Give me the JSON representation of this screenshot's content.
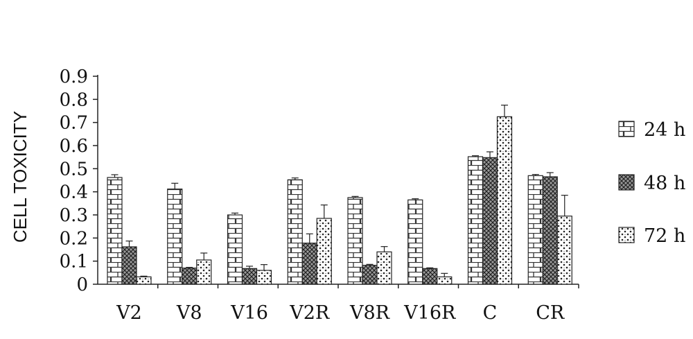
{
  "chart_data": {
    "type": "bar",
    "ylabel": "CELL TOXICITY",
    "xlabel": "",
    "ylim": [
      0,
      0.9
    ],
    "yticks": [
      "0",
      "0.1",
      "0.2",
      "0.3",
      "0.4",
      "0.5",
      "0.6",
      "0.7",
      "0.8",
      "0.9"
    ],
    "categories": [
      "V2",
      "V8",
      "V16",
      "V2R",
      "V8R",
      "V16R",
      "C",
      "CR"
    ],
    "series": [
      {
        "name": "24 h",
        "pattern": "brick",
        "values": [
          0.462,
          0.412,
          0.3,
          0.452,
          0.375,
          0.365,
          0.552,
          0.47
        ],
        "errors": [
          0.012,
          0.025,
          0.008,
          0.008,
          0.005,
          0.005,
          0.004,
          0.005
        ]
      },
      {
        "name": "48 h",
        "pattern": "crosshatch",
        "values": [
          0.162,
          0.07,
          0.068,
          0.178,
          0.082,
          0.068,
          0.548,
          0.465
        ],
        "errors": [
          0.025,
          0.003,
          0.01,
          0.04,
          0.004,
          0.003,
          0.025,
          0.018
        ]
      },
      {
        "name": "72 h",
        "pattern": "dots",
        "values": [
          0.032,
          0.105,
          0.06,
          0.285,
          0.14,
          0.032,
          0.725,
          0.295
        ],
        "errors": [
          0.003,
          0.03,
          0.025,
          0.058,
          0.023,
          0.015,
          0.05,
          0.09
        ]
      }
    ],
    "legend_position": "right",
    "grid": false
  }
}
